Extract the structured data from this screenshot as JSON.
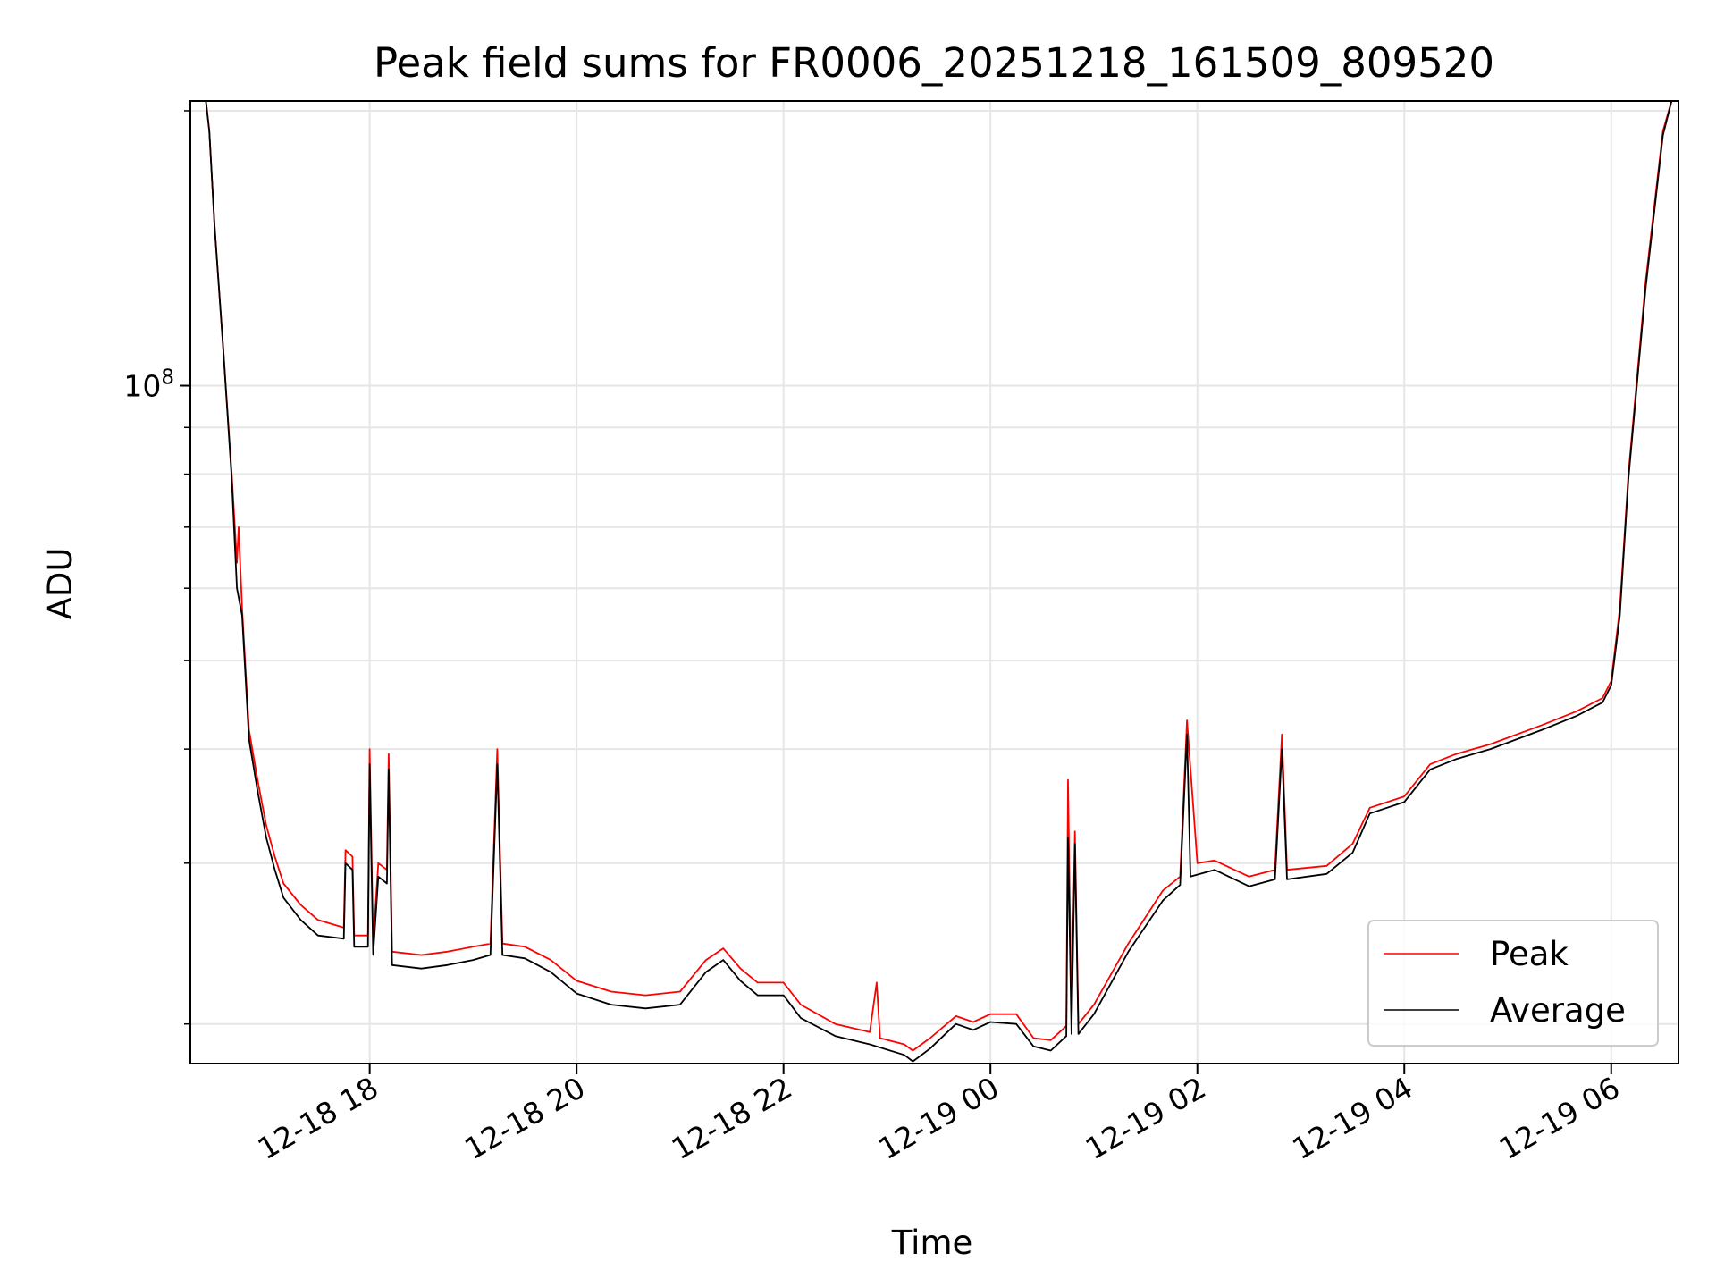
{
  "chart_data": {
    "type": "line",
    "title": "Peak field sums for FR0006_20251218_161509_809520",
    "xlabel": "Time",
    "ylabel": "ADU",
    "y_scale": "log",
    "grid": true,
    "legend_placement": "lower-right",
    "ylim": [
      18100000,
      205000000
    ],
    "xlim": [
      "2025-12-18 16:16",
      "2025-12-19 06:39"
    ],
    "x_ticks": [
      {
        "t": "2025-12-18 18:00",
        "label": "12-18 18"
      },
      {
        "t": "2025-12-18 20:00",
        "label": "12-18 20"
      },
      {
        "t": "2025-12-18 22:00",
        "label": "12-18 22"
      },
      {
        "t": "2025-12-19 00:00",
        "label": "12-19 00"
      },
      {
        "t": "2025-12-19 02:00",
        "label": "12-19 02"
      },
      {
        "t": "2025-12-19 04:00",
        "label": "12-19 04"
      },
      {
        "t": "2025-12-19 06:00",
        "label": "12-19 06"
      }
    ],
    "y_major_ticks": [
      {
        "v": 100000000,
        "base": "10",
        "exp": "8"
      }
    ],
    "y_minor_ticks": [
      20000000,
      30000000,
      40000000,
      50000000,
      60000000,
      70000000,
      80000000,
      90000000,
      200000000
    ],
    "colors": {
      "peak": "#ff0000",
      "average": "#000000",
      "grid": "#e6e6e6"
    },
    "series": [
      {
        "name": "Peak",
        "color": "#ff0000",
        "points": [
          [
            "2025-12-18 16:25",
            205000000
          ],
          [
            "2025-12-18 16:27",
            190000000
          ],
          [
            "2025-12-18 16:30",
            150000000
          ],
          [
            "2025-12-18 16:35",
            110000000
          ],
          [
            "2025-12-18 16:40",
            80000000
          ],
          [
            "2025-12-18 16:43",
            64000000
          ],
          [
            "2025-12-18 16:44",
            70000000
          ],
          [
            "2025-12-18 16:46",
            57000000
          ],
          [
            "2025-12-18 16:50",
            42000000
          ],
          [
            "2025-12-18 16:55",
            37000000
          ],
          [
            "2025-12-18 17:00",
            33000000
          ],
          [
            "2025-12-18 17:05",
            30500000
          ],
          [
            "2025-12-18 17:10",
            28500000
          ],
          [
            "2025-12-18 17:20",
            27000000
          ],
          [
            "2025-12-18 17:30",
            26000000
          ],
          [
            "2025-12-18 17:45",
            25500000
          ],
          [
            "2025-12-18 17:46",
            31000000
          ],
          [
            "2025-12-18 17:50",
            30500000
          ],
          [
            "2025-12-18 17:51",
            25000000
          ],
          [
            "2025-12-18 17:59",
            25000000
          ],
          [
            "2025-12-18 18:00",
            40000000
          ],
          [
            "2025-12-18 18:02",
            24500000
          ],
          [
            "2025-12-18 18:05",
            30000000
          ],
          [
            "2025-12-18 18:10",
            29500000
          ],
          [
            "2025-12-18 18:11",
            39500000
          ],
          [
            "2025-12-18 18:13",
            24000000
          ],
          [
            "2025-12-18 18:30",
            23800000
          ],
          [
            "2025-12-18 18:45",
            24000000
          ],
          [
            "2025-12-18 19:00",
            24300000
          ],
          [
            "2025-12-18 19:10",
            24500000
          ],
          [
            "2025-12-18 19:14",
            40000000
          ],
          [
            "2025-12-18 19:17",
            24500000
          ],
          [
            "2025-12-18 19:30",
            24300000
          ],
          [
            "2025-12-18 19:45",
            23500000
          ],
          [
            "2025-12-18 20:00",
            22300000
          ],
          [
            "2025-12-18 20:20",
            21700000
          ],
          [
            "2025-12-18 20:40",
            21500000
          ],
          [
            "2025-12-18 21:00",
            21700000
          ],
          [
            "2025-12-18 21:15",
            23500000
          ],
          [
            "2025-12-18 21:25",
            24200000
          ],
          [
            "2025-12-18 21:35",
            23000000
          ],
          [
            "2025-12-18 21:45",
            22200000
          ],
          [
            "2025-12-18 22:00",
            22200000
          ],
          [
            "2025-12-18 22:10",
            21000000
          ],
          [
            "2025-12-18 22:30",
            20000000
          ],
          [
            "2025-12-18 22:50",
            19600000
          ],
          [
            "2025-12-18 22:54",
            22200000
          ],
          [
            "2025-12-18 22:56",
            19300000
          ],
          [
            "2025-12-18 23:10",
            19000000
          ],
          [
            "2025-12-18 23:15",
            18700000
          ],
          [
            "2025-12-18 23:25",
            19300000
          ],
          [
            "2025-12-18 23:40",
            20400000
          ],
          [
            "2025-12-18 23:50",
            20100000
          ],
          [
            "2025-12-19 00:00",
            20500000
          ],
          [
            "2025-12-19 00:15",
            20500000
          ],
          [
            "2025-12-19 00:25",
            19300000
          ],
          [
            "2025-12-19 00:35",
            19200000
          ],
          [
            "2025-12-19 00:44",
            19900000
          ],
          [
            "2025-12-19 00:45",
            37000000
          ],
          [
            "2025-12-19 00:47",
            20000000
          ],
          [
            "2025-12-19 00:49",
            32500000
          ],
          [
            "2025-12-19 00:51",
            20000000
          ],
          [
            "2025-12-19 01:00",
            21000000
          ],
          [
            "2025-12-19 01:20",
            24500000
          ],
          [
            "2025-12-19 01:40",
            28000000
          ],
          [
            "2025-12-19 01:50",
            29000000
          ],
          [
            "2025-12-19 02:00",
            30000000
          ],
          [
            "2025-12-19 01:54",
            43000000
          ],
          [
            "2025-12-19 02:10",
            30200000
          ],
          [
            "2025-12-19 02:30",
            29000000
          ],
          [
            "2025-12-19 02:45",
            29500000
          ],
          [
            "2025-12-19 02:49",
            41500000
          ],
          [
            "2025-12-19 02:52",
            29500000
          ],
          [
            "2025-12-19 03:15",
            29800000
          ],
          [
            "2025-12-19 03:30",
            31500000
          ],
          [
            "2025-12-19 03:40",
            34500000
          ],
          [
            "2025-12-19 04:00",
            35500000
          ],
          [
            "2025-12-19 04:15",
            38500000
          ],
          [
            "2025-12-19 04:30",
            39500000
          ],
          [
            "2025-12-19 04:50",
            40500000
          ],
          [
            "2025-12-19 05:20",
            42500000
          ],
          [
            "2025-12-19 05:40",
            44000000
          ],
          [
            "2025-12-19 05:55",
            45500000
          ],
          [
            "2025-12-19 06:00",
            47500000
          ],
          [
            "2025-12-19 06:05",
            57000000
          ],
          [
            "2025-12-19 06:10",
            80000000
          ],
          [
            "2025-12-19 06:20",
            130000000
          ],
          [
            "2025-12-19 06:30",
            190000000
          ],
          [
            "2025-12-19 06:35",
            205000000
          ]
        ]
      },
      {
        "name": "Average",
        "color": "#000000",
        "points": [
          [
            "2025-12-18 16:25",
            205000000
          ],
          [
            "2025-12-18 16:27",
            190000000
          ],
          [
            "2025-12-18 16:30",
            150000000
          ],
          [
            "2025-12-18 16:35",
            110000000
          ],
          [
            "2025-12-18 16:40",
            79000000
          ],
          [
            "2025-12-18 16:43",
            60000000
          ],
          [
            "2025-12-18 16:46",
            56000000
          ],
          [
            "2025-12-18 16:50",
            41000000
          ],
          [
            "2025-12-18 16:55",
            36000000
          ],
          [
            "2025-12-18 17:00",
            32000000
          ],
          [
            "2025-12-18 17:05",
            29500000
          ],
          [
            "2025-12-18 17:10",
            27500000
          ],
          [
            "2025-12-18 17:20",
            26000000
          ],
          [
            "2025-12-18 17:30",
            25000000
          ],
          [
            "2025-12-18 17:45",
            24800000
          ],
          [
            "2025-12-18 17:46",
            30000000
          ],
          [
            "2025-12-18 17:50",
            29500000
          ],
          [
            "2025-12-18 17:51",
            24300000
          ],
          [
            "2025-12-18 17:59",
            24300000
          ],
          [
            "2025-12-18 18:00",
            38500000
          ],
          [
            "2025-12-18 18:02",
            23800000
          ],
          [
            "2025-12-18 18:05",
            29000000
          ],
          [
            "2025-12-18 18:10",
            28500000
          ],
          [
            "2025-12-18 18:11",
            38000000
          ],
          [
            "2025-12-18 18:13",
            23200000
          ],
          [
            "2025-12-18 18:30",
            23000000
          ],
          [
            "2025-12-18 18:45",
            23200000
          ],
          [
            "2025-12-18 19:00",
            23500000
          ],
          [
            "2025-12-18 19:10",
            23800000
          ],
          [
            "2025-12-18 19:14",
            38500000
          ],
          [
            "2025-12-18 19:17",
            23800000
          ],
          [
            "2025-12-18 19:30",
            23600000
          ],
          [
            "2025-12-18 19:45",
            22800000
          ],
          [
            "2025-12-18 20:00",
            21600000
          ],
          [
            "2025-12-18 20:20",
            21000000
          ],
          [
            "2025-12-18 20:40",
            20800000
          ],
          [
            "2025-12-18 21:00",
            21000000
          ],
          [
            "2025-12-18 21:15",
            22800000
          ],
          [
            "2025-12-18 21:25",
            23500000
          ],
          [
            "2025-12-18 21:35",
            22300000
          ],
          [
            "2025-12-18 21:45",
            21500000
          ],
          [
            "2025-12-18 22:00",
            21500000
          ],
          [
            "2025-12-18 22:10",
            20300000
          ],
          [
            "2025-12-18 22:30",
            19400000
          ],
          [
            "2025-12-18 22:50",
            19000000
          ],
          [
            "2025-12-18 23:10",
            18500000
          ],
          [
            "2025-12-18 23:15",
            18200000
          ],
          [
            "2025-12-18 23:25",
            18800000
          ],
          [
            "2025-12-18 23:40",
            20000000
          ],
          [
            "2025-12-18 23:50",
            19700000
          ],
          [
            "2025-12-19 00:00",
            20100000
          ],
          [
            "2025-12-19 00:15",
            20000000
          ],
          [
            "2025-12-19 00:25",
            18900000
          ],
          [
            "2025-12-19 00:35",
            18700000
          ],
          [
            "2025-12-19 00:44",
            19400000
          ],
          [
            "2025-12-19 00:45",
            32000000
          ],
          [
            "2025-12-19 00:47",
            19500000
          ],
          [
            "2025-12-19 00:49",
            31500000
          ],
          [
            "2025-12-19 00:51",
            19500000
          ],
          [
            "2025-12-19 01:00",
            20500000
          ],
          [
            "2025-12-19 01:20",
            24000000
          ],
          [
            "2025-12-19 01:40",
            27300000
          ],
          [
            "2025-12-19 01:50",
            28400000
          ],
          [
            "2025-12-19 01:54",
            41500000
          ],
          [
            "2025-12-19 01:56",
            29000000
          ],
          [
            "2025-12-19 02:10",
            29500000
          ],
          [
            "2025-12-19 02:30",
            28300000
          ],
          [
            "2025-12-19 02:45",
            28800000
          ],
          [
            "2025-12-19 02:49",
            40000000
          ],
          [
            "2025-12-19 02:52",
            28800000
          ],
          [
            "2025-12-19 03:15",
            29200000
          ],
          [
            "2025-12-19 03:30",
            30800000
          ],
          [
            "2025-12-19 03:40",
            34000000
          ],
          [
            "2025-12-19 04:00",
            35000000
          ],
          [
            "2025-12-19 04:15",
            38000000
          ],
          [
            "2025-12-19 04:30",
            39000000
          ],
          [
            "2025-12-19 04:50",
            40000000
          ],
          [
            "2025-12-19 05:20",
            42000000
          ],
          [
            "2025-12-19 05:40",
            43500000
          ],
          [
            "2025-12-19 05:55",
            45000000
          ],
          [
            "2025-12-19 06:00",
            47000000
          ],
          [
            "2025-12-19 06:05",
            56000000
          ],
          [
            "2025-12-19 06:10",
            79000000
          ],
          [
            "2025-12-19 06:20",
            128000000
          ],
          [
            "2025-12-19 06:30",
            188000000
          ],
          [
            "2025-12-19 06:35",
            205000000
          ]
        ]
      }
    ]
  }
}
